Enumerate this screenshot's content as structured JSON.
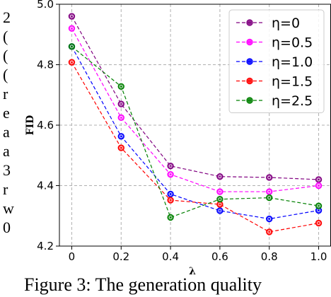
{
  "chart_data": {
    "type": "line",
    "xlabel": "λ",
    "ylabel": "FID",
    "x": [
      0,
      0.2,
      0.4,
      0.6,
      0.8,
      1.0
    ],
    "x_ticks": [
      "0",
      "0.2",
      "0.4",
      "0.6",
      "0.8",
      "1.0"
    ],
    "y_ticks": [
      "4.2",
      "4.4",
      "4.6",
      "4.8",
      "5.0"
    ],
    "xlim": [
      -0.05,
      1.05
    ],
    "ylim": [
      4.2,
      5.0
    ],
    "grid": true,
    "legend_position": "top-right",
    "series": [
      {
        "name": "η=0",
        "color": "#800080",
        "values": [
          4.96,
          4.67,
          4.465,
          4.43,
          4.427,
          4.42
        ]
      },
      {
        "name": "η=0.5",
        "color": "#ff00ff",
        "values": [
          4.92,
          4.625,
          4.437,
          4.38,
          4.38,
          4.4
        ]
      },
      {
        "name": "η=1.0",
        "color": "#0000ff",
        "values": [
          4.86,
          4.563,
          4.372,
          4.317,
          4.29,
          4.318
        ]
      },
      {
        "name": "η=1.5",
        "color": "#ff0000",
        "values": [
          4.808,
          4.525,
          4.352,
          4.338,
          4.247,
          4.276
        ]
      },
      {
        "name": "η=2.5",
        "color": "#008000",
        "values": [
          4.86,
          4.728,
          4.295,
          4.355,
          4.36,
          4.333
        ]
      }
    ]
  },
  "caption": "Figure 3:  The generation quality",
  "margin_glyphs": [
    "2",
    "(",
    "(",
    "(",
    "r",
    "e",
    "a",
    "a",
    "3",
    "r",
    "w",
    "0"
  ]
}
